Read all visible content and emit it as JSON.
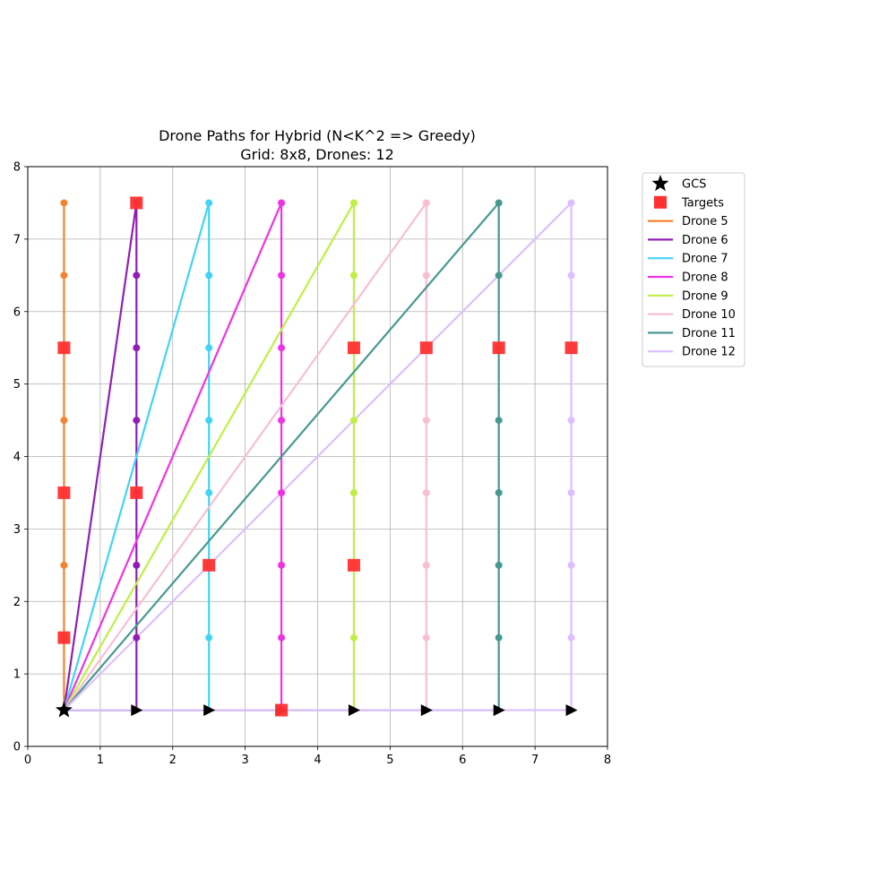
{
  "chart_data": {
    "type": "line",
    "title": "Drone Paths for Hybrid (N<K^2 => Greedy)",
    "subtitle": "Grid: 8x8, Drones: 12",
    "xlabel": "",
    "ylabel": "",
    "xlim": [
      0,
      8
    ],
    "ylim": [
      0,
      8
    ],
    "x_ticks": [
      "0",
      "1",
      "2",
      "3",
      "4",
      "5",
      "6",
      "7",
      "8"
    ],
    "y_ticks": [
      "0",
      "1",
      "2",
      "3",
      "4",
      "5",
      "6",
      "7",
      "8"
    ],
    "grid": true,
    "legend_position": "outside-upper-right",
    "gcs": {
      "name": "GCS",
      "x": 0.5,
      "y": 0.5,
      "marker": "star",
      "color": "#000000"
    },
    "targets": {
      "name": "Targets",
      "marker": "square",
      "color": "#ff3030",
      "points": [
        [
          0.5,
          1.5
        ],
        [
          0.5,
          3.5
        ],
        [
          0.5,
          5.5
        ],
        [
          1.5,
          3.5
        ],
        [
          1.5,
          7.5
        ],
        [
          2.5,
          2.5
        ],
        [
          3.5,
          0.5
        ],
        [
          4.5,
          2.5
        ],
        [
          4.5,
          5.5
        ],
        [
          5.5,
          5.5
        ],
        [
          6.5,
          5.5
        ],
        [
          7.5,
          5.5
        ]
      ]
    },
    "series": [
      {
        "name": "Drone 5",
        "color": "#f58231",
        "column": 0.5,
        "path": [
          [
            0.5,
            0.5
          ],
          [
            0.5,
            1.5
          ],
          [
            0.5,
            2.5
          ],
          [
            0.5,
            3.5
          ],
          [
            0.5,
            4.5
          ],
          [
            0.5,
            5.5
          ],
          [
            0.5,
            6.5
          ],
          [
            0.5,
            7.5
          ]
        ]
      },
      {
        "name": "Drone 6",
        "color": "#911eb4",
        "column": 1.5,
        "path": [
          [
            0.5,
            0.5
          ],
          [
            1.5,
            0.5
          ],
          [
            1.5,
            1.5
          ],
          [
            1.5,
            2.5
          ],
          [
            1.5,
            3.5
          ],
          [
            1.5,
            4.5
          ],
          [
            1.5,
            5.5
          ],
          [
            1.5,
            6.5
          ],
          [
            1.5,
            7.5
          ],
          [
            0.5,
            0.5
          ]
        ]
      },
      {
        "name": "Drone 7",
        "color": "#42d4f4",
        "column": 2.5,
        "path": [
          [
            0.5,
            0.5
          ],
          [
            2.5,
            0.5
          ],
          [
            2.5,
            1.5
          ],
          [
            2.5,
            2.5
          ],
          [
            2.5,
            3.5
          ],
          [
            2.5,
            4.5
          ],
          [
            2.5,
            5.5
          ],
          [
            2.5,
            6.5
          ],
          [
            2.5,
            7.5
          ],
          [
            0.5,
            0.5
          ]
        ]
      },
      {
        "name": "Drone 8",
        "color": "#f032e6",
        "column": 3.5,
        "path": [
          [
            0.5,
            0.5
          ],
          [
            3.5,
            0.5
          ],
          [
            3.5,
            1.5
          ],
          [
            3.5,
            2.5
          ],
          [
            3.5,
            3.5
          ],
          [
            3.5,
            4.5
          ],
          [
            3.5,
            5.5
          ],
          [
            3.5,
            6.5
          ],
          [
            3.5,
            7.5
          ],
          [
            0.5,
            0.5
          ]
        ]
      },
      {
        "name": "Drone 9",
        "color": "#bfef45",
        "column": 4.5,
        "path": [
          [
            0.5,
            0.5
          ],
          [
            4.5,
            0.5
          ],
          [
            4.5,
            1.5
          ],
          [
            4.5,
            2.5
          ],
          [
            4.5,
            3.5
          ],
          [
            4.5,
            4.5
          ],
          [
            4.5,
            5.5
          ],
          [
            4.5,
            6.5
          ],
          [
            4.5,
            7.5
          ],
          [
            0.5,
            0.5
          ]
        ]
      },
      {
        "name": "Drone 10",
        "color": "#fabed4",
        "column": 5.5,
        "path": [
          [
            0.5,
            0.5
          ],
          [
            5.5,
            0.5
          ],
          [
            5.5,
            1.5
          ],
          [
            5.5,
            2.5
          ],
          [
            5.5,
            3.5
          ],
          [
            5.5,
            4.5
          ],
          [
            5.5,
            5.5
          ],
          [
            5.5,
            6.5
          ],
          [
            5.5,
            7.5
          ],
          [
            0.5,
            0.5
          ]
        ]
      },
      {
        "name": "Drone 11",
        "color": "#469990",
        "column": 6.5,
        "path": [
          [
            0.5,
            0.5
          ],
          [
            6.5,
            0.5
          ],
          [
            6.5,
            1.5
          ],
          [
            6.5,
            2.5
          ],
          [
            6.5,
            3.5
          ],
          [
            6.5,
            4.5
          ],
          [
            6.5,
            5.5
          ],
          [
            6.5,
            6.5
          ],
          [
            6.5,
            7.5
          ],
          [
            0.5,
            0.5
          ]
        ]
      },
      {
        "name": "Drone 12",
        "color": "#dcbeff",
        "column": 7.5,
        "path": [
          [
            0.5,
            0.5
          ],
          [
            7.5,
            0.5
          ],
          [
            7.5,
            1.5
          ],
          [
            7.5,
            2.5
          ],
          [
            7.5,
            3.5
          ],
          [
            7.5,
            4.5
          ],
          [
            7.5,
            5.5
          ],
          [
            7.5,
            6.5
          ],
          [
            7.5,
            7.5
          ],
          [
            0.5,
            0.5
          ]
        ]
      }
    ]
  }
}
